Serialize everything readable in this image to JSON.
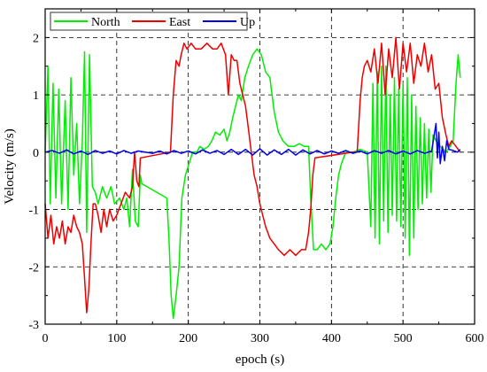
{
  "chart_data": {
    "type": "line",
    "title": "",
    "xlabel": "epoch (s)",
    "ylabel": "Velocity (m/s)",
    "xlim": [
      0,
      600
    ],
    "ylim": [
      -3,
      2.5
    ],
    "xticks": [
      0,
      100,
      200,
      300,
      400,
      500,
      600
    ],
    "yticks": [
      -3,
      -2,
      -1,
      0,
      1,
      2
    ],
    "grid": true,
    "legend_position": "top-left",
    "series": [
      {
        "name": "North",
        "color": "#00ee00",
        "points": [
          [
            0,
            0
          ],
          [
            4,
            1.5
          ],
          [
            7,
            -0.9
          ],
          [
            11,
            1.2
          ],
          [
            15,
            -0.8
          ],
          [
            19,
            1.1
          ],
          [
            23,
            -0.9
          ],
          [
            28,
            0.9
          ],
          [
            32,
            -1.0
          ],
          [
            36,
            1.3
          ],
          [
            40,
            -0.4
          ],
          [
            44,
            0.5
          ],
          [
            48,
            -0.9
          ],
          [
            52,
            0.2
          ],
          [
            55,
            1.75
          ],
          [
            58,
            -1.4
          ],
          [
            62,
            1.7
          ],
          [
            66,
            -0.6
          ],
          [
            70,
            -0.7
          ],
          [
            74,
            -0.9
          ],
          [
            80,
            -0.6
          ],
          [
            86,
            -0.8
          ],
          [
            92,
            -0.6
          ],
          [
            97,
            -0.9
          ],
          [
            104,
            -0.8
          ],
          [
            110,
            -1.0
          ],
          [
            114,
            -0.8
          ],
          [
            118,
            -1.3
          ],
          [
            122,
            -0.3
          ],
          [
            126,
            -1.2
          ],
          [
            130,
            -1.3
          ],
          [
            133,
            -0.4
          ],
          [
            135,
            -0.55
          ],
          [
            170,
            -0.8
          ],
          [
            173,
            -1.5
          ],
          [
            176,
            -2.5
          ],
          [
            179,
            -2.9
          ],
          [
            183,
            -2.5
          ],
          [
            187,
            -2.0
          ],
          [
            191,
            -0.8
          ],
          [
            196,
            -0.4
          ],
          [
            201,
            -0.2
          ],
          [
            206,
            0
          ],
          [
            212,
            0
          ],
          [
            216,
            0.1
          ],
          [
            222,
            0.05
          ],
          [
            228,
            0.1
          ],
          [
            233,
            0.2
          ],
          [
            238,
            0.35
          ],
          [
            244,
            0.3
          ],
          [
            250,
            0.4
          ],
          [
            254,
            0.2
          ],
          [
            258,
            0.35
          ],
          [
            262,
            0.6
          ],
          [
            266,
            0.8
          ],
          [
            270,
            1.0
          ],
          [
            274,
            0.9
          ],
          [
            279,
            1.3
          ],
          [
            284,
            1.5
          ],
          [
            290,
            1.7
          ],
          [
            296,
            1.8
          ],
          [
            302,
            1.7
          ],
          [
            308,
            1.4
          ],
          [
            314,
            1.3
          ],
          [
            320,
            0.7
          ],
          [
            326,
            0.35
          ],
          [
            332,
            0.2
          ],
          [
            340,
            0.1
          ],
          [
            348,
            0.1
          ],
          [
            355,
            0.15
          ],
          [
            362,
            0.1
          ],
          [
            368,
            0.1
          ],
          [
            371,
            -0.8
          ],
          [
            375,
            -1.7
          ],
          [
            380,
            -1.7
          ],
          [
            386,
            -1.6
          ],
          [
            392,
            -1.7
          ],
          [
            398,
            -1.6
          ],
          [
            402,
            -1.3
          ],
          [
            406,
            -0.8
          ],
          [
            410,
            -0.4
          ],
          [
            414,
            -0.2
          ],
          [
            420,
            0
          ],
          [
            430,
            0
          ],
          [
            440,
            0.05
          ],
          [
            450,
            0
          ],
          [
            455,
            -1.3
          ],
          [
            458,
            1.2
          ],
          [
            461,
            -1.5
          ],
          [
            464,
            1.4
          ],
          [
            467,
            -1.6
          ],
          [
            470,
            1.5
          ],
          [
            473,
            -1.2
          ],
          [
            476,
            1.5
          ],
          [
            479,
            -1.4
          ],
          [
            482,
            1.0
          ],
          [
            485,
            -1.1
          ],
          [
            488,
            1.3
          ],
          [
            491,
            -1.2
          ],
          [
            494,
            1.1
          ],
          [
            497,
            -1.3
          ],
          [
            500,
            1.2
          ],
          [
            503,
            -1.5
          ],
          [
            506,
            1.3
          ],
          [
            509,
            -1.8
          ],
          [
            512,
            1.0
          ],
          [
            515,
            -1.5
          ],
          [
            518,
            0.8
          ],
          [
            521,
            -1.0
          ],
          [
            524,
            0.6
          ],
          [
            527,
            -0.9
          ],
          [
            530,
            0.5
          ],
          [
            533,
            -0.8
          ],
          [
            536,
            0.4
          ],
          [
            539,
            -0.7
          ],
          [
            542,
            0.3
          ],
          [
            546,
            0.2
          ],
          [
            552,
            0.1
          ],
          [
            560,
            0
          ],
          [
            566,
            0.1
          ],
          [
            570,
            0.2
          ],
          [
            574,
            1.2
          ],
          [
            577,
            1.7
          ],
          [
            580,
            1.3
          ]
        ]
      },
      {
        "name": "East",
        "color": "#ee0000",
        "points": [
          [
            0,
            -0.9
          ],
          [
            4,
            -1.5
          ],
          [
            8,
            -1.1
          ],
          [
            12,
            -1.6
          ],
          [
            16,
            -1.3
          ],
          [
            20,
            -1.5
          ],
          [
            24,
            -1.2
          ],
          [
            28,
            -1.6
          ],
          [
            32,
            -1.3
          ],
          [
            36,
            -1.4
          ],
          [
            40,
            -1.1
          ],
          [
            44,
            -1.3
          ],
          [
            48,
            -1.4
          ],
          [
            52,
            -1.6
          ],
          [
            55,
            -2.2
          ],
          [
            58,
            -2.8
          ],
          [
            61,
            -2.4
          ],
          [
            64,
            -1.6
          ],
          [
            67,
            -0.9
          ],
          [
            70,
            -0.9
          ],
          [
            74,
            -1.1
          ],
          [
            78,
            -1.4
          ],
          [
            82,
            -1.0
          ],
          [
            86,
            -1.3
          ],
          [
            90,
            -1.0
          ],
          [
            95,
            -1.2
          ],
          [
            100,
            -1.1
          ],
          [
            106,
            -0.9
          ],
          [
            112,
            -0.7
          ],
          [
            118,
            -0.8
          ],
          [
            122,
            -0.6
          ],
          [
            125,
            0
          ],
          [
            128,
            -0.5
          ],
          [
            131,
            -0.6
          ],
          [
            133,
            -0.1
          ],
          [
            175,
            0
          ],
          [
            179,
            1.0
          ],
          [
            183,
            1.6
          ],
          [
            187,
            1.5
          ],
          [
            190,
            1.7
          ],
          [
            194,
            1.9
          ],
          [
            198,
            1.8
          ],
          [
            204,
            1.9
          ],
          [
            210,
            1.8
          ],
          [
            218,
            1.8
          ],
          [
            226,
            1.9
          ],
          [
            234,
            1.8
          ],
          [
            240,
            1.8
          ],
          [
            246,
            1.9
          ],
          [
            252,
            1.7
          ],
          [
            256,
            1.0
          ],
          [
            260,
            1.7
          ],
          [
            264,
            1.6
          ],
          [
            268,
            1.6
          ],
          [
            272,
            1.2
          ],
          [
            276,
            1.0
          ],
          [
            280,
            0.8
          ],
          [
            284,
            0.4
          ],
          [
            288,
            0
          ],
          [
            292,
            -0.4
          ],
          [
            296,
            -0.6
          ],
          [
            300,
            -0.9
          ],
          [
            304,
            -1.1
          ],
          [
            308,
            -1.3
          ],
          [
            314,
            -1.5
          ],
          [
            320,
            -1.6
          ],
          [
            326,
            -1.7
          ],
          [
            334,
            -1.8
          ],
          [
            342,
            -1.7
          ],
          [
            350,
            -1.8
          ],
          [
            358,
            -1.7
          ],
          [
            364,
            -1.7
          ],
          [
            368,
            -1.4
          ],
          [
            371,
            -1.0
          ],
          [
            374,
            -0.4
          ],
          [
            377,
            -0.1
          ],
          [
            430,
            0
          ],
          [
            436,
            0
          ],
          [
            440,
            0.9
          ],
          [
            443,
            1.3
          ],
          [
            446,
            1.5
          ],
          [
            450,
            1.6
          ],
          [
            455,
            1.4
          ],
          [
            460,
            1.8
          ],
          [
            465,
            1.2
          ],
          [
            470,
            1.9
          ],
          [
            475,
            1.0
          ],
          [
            480,
            1.8
          ],
          [
            485,
            1.3
          ],
          [
            490,
            2.0
          ],
          [
            495,
            1.1
          ],
          [
            500,
            1.9
          ],
          [
            505,
            1.4
          ],
          [
            510,
            1.9
          ],
          [
            515,
            1.2
          ],
          [
            520,
            1.7
          ],
          [
            525,
            1.5
          ],
          [
            530,
            1.9
          ],
          [
            535,
            1.4
          ],
          [
            540,
            1.7
          ],
          [
            545,
            1.1
          ],
          [
            550,
            1.2
          ],
          [
            555,
            0.6
          ],
          [
            560,
            0.3
          ],
          [
            564,
            0.1
          ],
          [
            568,
            0.2
          ],
          [
            574,
            0.1
          ],
          [
            580,
            0
          ]
        ]
      },
      {
        "name": "Up",
        "color": "#0000ee",
        "points": [
          [
            0,
            0
          ],
          [
            10,
            0.03
          ],
          [
            20,
            -0.02
          ],
          [
            30,
            0.04
          ],
          [
            40,
            -0.03
          ],
          [
            50,
            0.02
          ],
          [
            60,
            -0.04
          ],
          [
            70,
            0.03
          ],
          [
            80,
            -0.02
          ],
          [
            90,
            0.02
          ],
          [
            100,
            -0.03
          ],
          [
            110,
            0.03
          ],
          [
            120,
            -0.02
          ],
          [
            130,
            0.02
          ],
          [
            140,
            0
          ],
          [
            150,
            -0.02
          ],
          [
            160,
            0.02
          ],
          [
            170,
            -0.03
          ],
          [
            180,
            0.03
          ],
          [
            190,
            -0.02
          ],
          [
            200,
            0.02
          ],
          [
            210,
            -0.03
          ],
          [
            220,
            0.04
          ],
          [
            230,
            -0.02
          ],
          [
            240,
            0.03
          ],
          [
            250,
            -0.04
          ],
          [
            260,
            0.05
          ],
          [
            270,
            -0.04
          ],
          [
            280,
            0.05
          ],
          [
            290,
            -0.05
          ],
          [
            300,
            0.06
          ],
          [
            310,
            -0.05
          ],
          [
            320,
            0.04
          ],
          [
            330,
            -0.04
          ],
          [
            340,
            0.05
          ],
          [
            350,
            -0.05
          ],
          [
            360,
            0.04
          ],
          [
            370,
            -0.03
          ],
          [
            380,
            0.03
          ],
          [
            390,
            -0.03
          ],
          [
            400,
            0.02
          ],
          [
            410,
            -0.02
          ],
          [
            420,
            0.03
          ],
          [
            430,
            -0.02
          ],
          [
            440,
            0.02
          ],
          [
            450,
            -0.03
          ],
          [
            460,
            0.03
          ],
          [
            470,
            -0.02
          ],
          [
            480,
            0.03
          ],
          [
            490,
            -0.03
          ],
          [
            500,
            0.02
          ],
          [
            510,
            -0.03
          ],
          [
            520,
            0.03
          ],
          [
            530,
            -0.02
          ],
          [
            540,
            0.02
          ],
          [
            546,
            0.5
          ],
          [
            548,
            -0.1
          ],
          [
            550,
            0.35
          ],
          [
            552,
            -0.2
          ],
          [
            555,
            0.1
          ],
          [
            558,
            -0.15
          ],
          [
            561,
            0.2
          ],
          [
            564,
            0.05
          ],
          [
            570,
            0.03
          ],
          [
            576,
            0.0
          ],
          [
            580,
            0.05
          ]
        ]
      }
    ]
  }
}
